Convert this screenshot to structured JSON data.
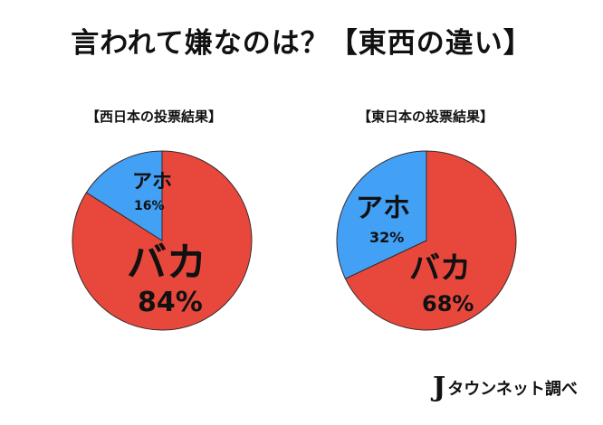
{
  "header": {
    "title": "言われて嫌なのは？【東西の違い】"
  },
  "charts": [
    {
      "subtitle": "【西日本の投票結果】",
      "slices": [
        {
          "label": "バカ",
          "pct_label": "84%",
          "value": 84,
          "color": "#E8483C"
        },
        {
          "label": "アホ",
          "pct_label": "16%",
          "value": 16,
          "color": "#42A0F5"
        }
      ]
    },
    {
      "subtitle": "【東日本の投票結果】",
      "slices": [
        {
          "label": "バカ",
          "pct_label": "68%",
          "value": 68,
          "color": "#E8483C"
        },
        {
          "label": "アホ",
          "pct_label": "32%",
          "value": 32,
          "color": "#42A0F5"
        }
      ]
    }
  ],
  "footer": {
    "logo_mark": "J",
    "credit": "タウンネット調べ"
  },
  "chart_data": [
    {
      "type": "pie",
      "title": "【西日本の投票結果】",
      "categories": [
        "バカ",
        "アホ"
      ],
      "values": [
        84,
        16
      ],
      "colors": [
        "#E8483C",
        "#42A0F5"
      ]
    },
    {
      "type": "pie",
      "title": "【東日本の投票結果】",
      "categories": [
        "バカ",
        "アホ"
      ],
      "values": [
        68,
        32
      ],
      "colors": [
        "#E8483C",
        "#42A0F5"
      ]
    }
  ]
}
